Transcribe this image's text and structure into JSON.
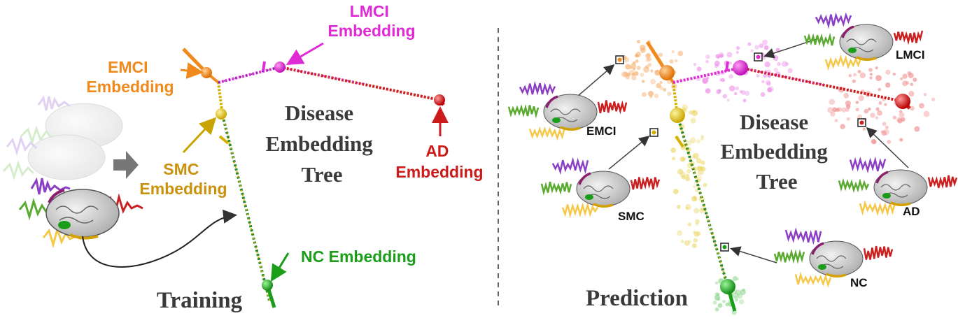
{
  "colors": {
    "nc": "#1a9e1a",
    "smc": "#c9a400",
    "emci": "#f08a1c",
    "lmci": "#e02ad6",
    "ad": "#cc1b1b",
    "smc_label": "#c8920f",
    "dark_text": "#3a3a3a",
    "gray_arrow": "#777777"
  },
  "training": {
    "title": "Training",
    "tree_label": [
      "Disease",
      "Embedding",
      "Tree"
    ],
    "emci_label": [
      "EMCI",
      "Embedding"
    ],
    "lmci_label": [
      "LMCI",
      "Embedding"
    ],
    "smc_label": [
      "SMC",
      "Embedding"
    ],
    "ad_label": [
      "AD",
      "Embedding"
    ],
    "nc_label": "NC Embedding"
  },
  "prediction": {
    "title": "Prediction",
    "tree_label": [
      "Disease",
      "Embedding",
      "Tree"
    ],
    "samples": {
      "emci": "EMCI",
      "lmci": "LMCI",
      "smc": "SMC",
      "ad": "AD",
      "nc": "NC"
    }
  },
  "icons": {
    "brain": "brain-icon",
    "signal": "eeg-signal-icon",
    "arrow": "arrow-icon"
  }
}
